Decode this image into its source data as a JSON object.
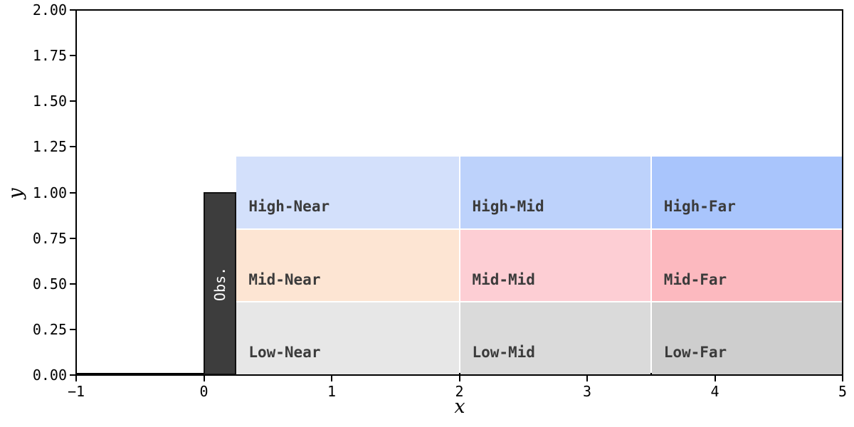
{
  "figure": {
    "background": "#ffffff"
  },
  "chart_data": {
    "type": "heatmap",
    "title": "",
    "xlabel": "x",
    "ylabel": "y",
    "xlim": [
      -1,
      5
    ],
    "ylim": [
      0,
      2
    ],
    "grid": false,
    "legend": "none",
    "x_ticks": [
      {
        "value": -1,
        "label": "−1"
      },
      {
        "value": 0,
        "label": "0"
      },
      {
        "value": 1,
        "label": "1"
      },
      {
        "value": 2,
        "label": "2"
      },
      {
        "value": 3,
        "label": "3"
      },
      {
        "value": 4,
        "label": "4"
      },
      {
        "value": 5,
        "label": "5"
      }
    ],
    "y_ticks": [
      {
        "value": 0.0,
        "label": "0.00"
      },
      {
        "value": 0.25,
        "label": "0.25"
      },
      {
        "value": 0.5,
        "label": "0.50"
      },
      {
        "value": 0.75,
        "label": "0.75"
      },
      {
        "value": 1.0,
        "label": "1.00"
      },
      {
        "value": 1.25,
        "label": "1.25"
      },
      {
        "value": 1.5,
        "label": "1.50"
      },
      {
        "value": 1.75,
        "label": "1.75"
      },
      {
        "value": 2.0,
        "label": "2.00"
      }
    ],
    "column_names": [
      "Near",
      "Mid",
      "Far"
    ],
    "row_names": [
      "Low",
      "Mid",
      "High"
    ],
    "col_edges": [
      0.25,
      2.0,
      3.5,
      5.0
    ],
    "row_edges": [
      0.0,
      0.4,
      0.8,
      1.2
    ],
    "label_text_color": "#3b3b3b",
    "regions": [
      {
        "label": "High-Near",
        "x0": 0.25,
        "x1": 2.0,
        "y0": 0.8,
        "y1": 1.2,
        "color": "#d3e0fb",
        "label_x": 0.35,
        "label_y": 0.9
      },
      {
        "label": "High-Mid",
        "x0": 2.0,
        "x1": 3.5,
        "y0": 0.8,
        "y1": 1.2,
        "color": "#bdd2fb",
        "label_x": 2.1,
        "label_y": 0.9
      },
      {
        "label": "High-Far",
        "x0": 3.5,
        "x1": 5.0,
        "y0": 0.8,
        "y1": 1.2,
        "color": "#a9c5fc",
        "label_x": 3.6,
        "label_y": 0.9
      },
      {
        "label": "Mid-Near",
        "x0": 0.25,
        "x1": 2.0,
        "y0": 0.4,
        "y1": 0.8,
        "color": "#fde5d3",
        "label_x": 0.35,
        "label_y": 0.5
      },
      {
        "label": "Mid-Mid",
        "x0": 2.0,
        "x1": 3.5,
        "y0": 0.4,
        "y1": 0.8,
        "color": "#fdced4",
        "label_x": 2.1,
        "label_y": 0.5
      },
      {
        "label": "Mid-Far",
        "x0": 3.5,
        "x1": 5.0,
        "y0": 0.4,
        "y1": 0.8,
        "color": "#fcb9bf",
        "label_x": 3.6,
        "label_y": 0.5
      },
      {
        "label": "Low-Near",
        "x0": 0.25,
        "x1": 2.0,
        "y0": 0.0,
        "y1": 0.4,
        "color": "#e7e7e7",
        "label_x": 0.35,
        "label_y": 0.1
      },
      {
        "label": "Low-Mid",
        "x0": 2.0,
        "x1": 3.5,
        "y0": 0.0,
        "y1": 0.4,
        "color": "#dadada",
        "label_x": 2.1,
        "label_y": 0.1
      },
      {
        "label": "Low-Far",
        "x0": 3.5,
        "x1": 5.0,
        "y0": 0.0,
        "y1": 0.4,
        "color": "#cecece",
        "label_x": 3.6,
        "label_y": 0.1
      }
    ],
    "obstacle": {
      "label": "Obs.",
      "x0": 0.0,
      "x1": 0.25,
      "y0": 0.0,
      "y1": 1.0,
      "fill_color": "#3d3d3d",
      "edge_color": "#111111",
      "text_color": "#ffffff"
    }
  }
}
